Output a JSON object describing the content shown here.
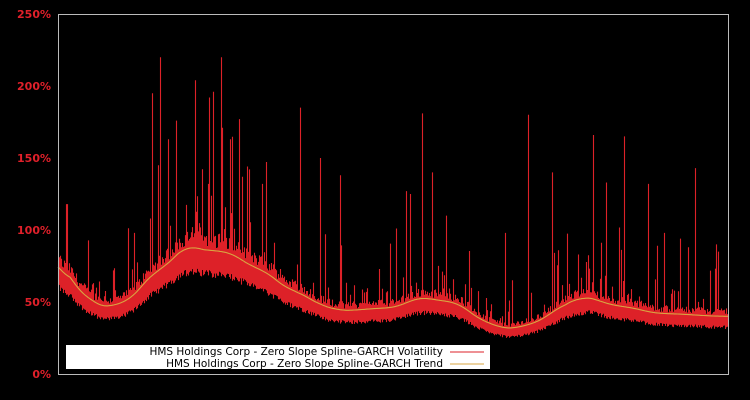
{
  "chart_data": {
    "type": "line",
    "title": "",
    "xlabel": "",
    "ylabel": "",
    "ylim": [
      0,
      250
    ],
    "y_ticks": [
      "0%",
      "50%",
      "100%",
      "150%",
      "200%",
      "250%"
    ],
    "y_tick_values": [
      0,
      50,
      100,
      150,
      200,
      250
    ],
    "grid": false,
    "legend_position": "lower-left",
    "background": "#000000",
    "series": [
      {
        "name": "HMS Holdings Corp - Zero Slope Spline-GARCH Volatility",
        "color": "#dd2128",
        "kind": "volatility",
        "notable_spikes_pct": [
          {
            "x_frac": 0.013,
            "y": 118
          },
          {
            "x_frac": 0.137,
            "y": 108
          },
          {
            "x_frac": 0.138,
            "y": 93
          },
          {
            "x_frac": 0.139,
            "y": 71
          },
          {
            "x_frac": 0.175,
            "y": 74
          },
          {
            "x_frac": 0.2,
            "y": 102
          },
          {
            "x_frac": 0.224,
            "y": 132
          },
          {
            "x_frac": 0.231,
            "y": 196
          },
          {
            "x_frac": 0.243,
            "y": 220
          },
          {
            "x_frac": 0.256,
            "y": 163
          },
          {
            "x_frac": 0.27,
            "y": 177
          },
          {
            "x_frac": 0.275,
            "y": 137
          },
          {
            "x_frac": 0.206,
            "y": 82
          },
          {
            "x_frac": 0.203,
            "y": 83
          },
          {
            "x_frac": 0.184,
            "y": 88
          },
          {
            "x_frac": 0.205,
            "y": 100
          },
          {
            "x_frac": 0.209,
            "y": 99
          },
          {
            "x_frac": 0.205,
            "y": 86
          },
          {
            "x_frac": 0.205,
            "y": 78
          },
          {
            "x_frac": 0.205,
            "y": 73
          },
          {
            "x_frac": 0.205,
            "y": 71
          },
          {
            "x_frac": 0.205,
            "y": 70
          },
          {
            "x_frac": 0.205,
            "y": 69
          },
          {
            "x_frac": 0.205,
            "y": 67
          },
          {
            "x_frac": 0.205,
            "y": 66
          },
          {
            "x_frac": 0.205,
            "y": 65
          },
          {
            "x_frac": 0.205,
            "y": 64
          },
          {
            "x_frac": 0.205,
            "y": 63
          },
          {
            "x_frac": 0.205,
            "y": 62
          },
          {
            "x_frac": 0.205,
            "y": 61
          },
          {
            "x_frac": 0.205,
            "y": 60
          },
          {
            "x_frac": 0.205,
            "y": 59
          },
          {
            "x_frac": 0.205,
            "y": 58
          },
          {
            "x_frac": 0.205,
            "y": 57
          },
          {
            "x_frac": 0.205,
            "y": 56
          },
          {
            "x_frac": 0.205,
            "y": 55
          },
          {
            "x_frac": 0.205,
            "y": 54
          },
          {
            "x_frac": 0.205,
            "y": 53
          },
          {
            "x_frac": 0.205,
            "y": 52
          },
          {
            "x_frac": 0.205,
            "y": 51
          },
          {
            "x_frac": 0.205,
            "y": 50
          },
          {
            "x_frac": 0.205,
            "y": 49
          },
          {
            "x_frac": 0.205,
            "y": 48
          },
          {
            "x_frac": 0.205,
            "y": 47
          },
          {
            "x_frac": 0.205,
            "y": 46
          },
          {
            "x_frac": 0.205,
            "y": 45
          },
          {
            "x_frac": 0.205,
            "y": 44
          },
          {
            "x_frac": 0.205,
            "y": 43
          },
          {
            "x_frac": 0.205,
            "y": 42
          },
          {
            "x_frac": 0.205,
            "y": 41
          },
          {
            "x_frac": 0.205,
            "y": 40
          },
          {
            "x_frac": 0.205,
            "y": 39
          },
          {
            "x_frac": 0.205,
            "y": 38
          },
          {
            "x_frac": 0.205,
            "y": 37
          },
          {
            "x_frac": 0.205,
            "y": 36
          },
          {
            "x_frac": 0.205,
            "y": 35
          },
          {
            "x_frac": 0.205,
            "y": 34
          },
          {
            "x_frac": 0.205,
            "y": 33
          },
          {
            "x_frac": 0.205,
            "y": 32
          },
          {
            "x_frac": 0.205,
            "y": 31
          },
          {
            "x_frac": 0.205,
            "y": 30
          },
          {
            "x_frac": 0.205,
            "y": 29
          },
          {
            "x_frac": 0.205,
            "y": 28
          },
          {
            "x_frac": 0.205,
            "y": 27
          },
          {
            "x_frac": 0.205,
            "y": 26
          },
          {
            "x_frac": 0.205,
            "y": 25
          },
          {
            "x_frac": 0.205,
            "y": 24
          },
          {
            "x_frac": 0.205,
            "y": 23
          },
          {
            "x_frac": 0.205,
            "y": 22
          },
          {
            "x_frac": 0.205,
            "y": 21
          },
          {
            "x_frac": 0.205,
            "y": 20
          },
          {
            "x_frac": 0.205,
            "y": 19
          },
          {
            "x_frac": 0.205,
            "y": 18
          },
          {
            "x_frac": 0.205,
            "y": 17
          },
          {
            "x_frac": 0.205,
            "y": 16
          },
          {
            "x_frac": 0.205,
            "y": 15
          },
          {
            "x_frac": 0.205,
            "y": 14
          },
          {
            "x_frac": 0.205,
            "y": 13
          },
          {
            "x_frac": 0.205,
            "y": 12
          },
          {
            "x_frac": 0.205,
            "y": 11
          },
          {
            "x_frac": 0.205,
            "y": 10
          }
        ]
      },
      {
        "name": "HMS Holdings Corp - Zero Slope Spline-GARCH Trend",
        "color": "#d9a441",
        "kind": "trend",
        "points_pct": [
          {
            "x_frac": 0.0,
            "y": 80
          },
          {
            "x_frac": 0.03,
            "y": 58
          },
          {
            "x_frac": 0.067,
            "y": 46
          },
          {
            "x_frac": 0.1,
            "y": 50
          },
          {
            "x_frac": 0.15,
            "y": 72
          },
          {
            "x_frac": 0.2,
            "y": 87
          },
          {
            "x_frac": 0.197,
            "y": 90
          },
          {
            "x_frac": 0.25,
            "y": 85
          },
          {
            "x_frac": 0.3,
            "y": 73
          },
          {
            "x_frac": 0.35,
            "y": 58
          },
          {
            "x_frac": 0.4,
            "y": 47
          },
          {
            "x_frac": 0.42,
            "y": 44
          },
          {
            "x_frac": 0.42,
            "y": 42
          },
          {
            "x_frac": 0.5,
            "y": 46
          },
          {
            "x_frac": 0.54,
            "y": 53
          },
          {
            "x_frac": 0.59,
            "y": 50
          },
          {
            "x_frac": 0.64,
            "y": 36
          },
          {
            "x_frac": 0.67,
            "y": 31
          },
          {
            "x_frac": 0.7,
            "y": 34
          },
          {
            "x_frac": 0.77,
            "y": 50
          },
          {
            "x_frac": 0.78,
            "y": 54
          },
          {
            "x_frac": 0.84,
            "y": 47
          },
          {
            "x_frac": 0.9,
            "y": 42
          },
          {
            "x_frac": 1.0,
            "y": 40
          }
        ]
      }
    ]
  },
  "legend": {
    "items": [
      {
        "label": "HMS Holdings Corp - Zero Slope Spline-GARCH Volatility",
        "color": "#dd2128"
      },
      {
        "label": "HMS Holdings Corp - Zero Slope Spline-GARCH Trend",
        "color": "#d9a441"
      }
    ]
  }
}
